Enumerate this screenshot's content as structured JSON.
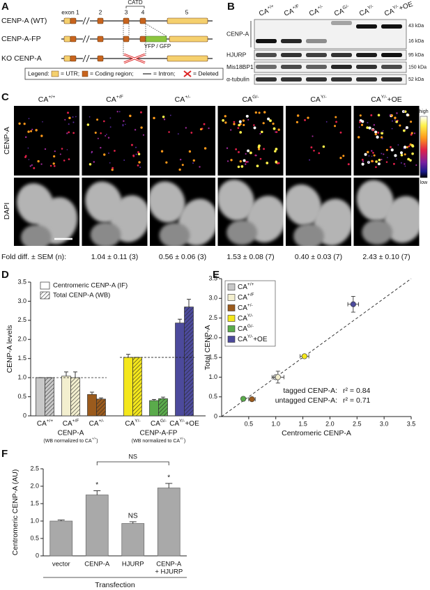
{
  "panels": {
    "A": {
      "letter": "A",
      "rows": [
        "CENP-A (WT)",
        "CENP-A-FP",
        "KO CENP-A"
      ],
      "exon_labels": [
        "exon 1",
        "2",
        "3",
        "4",
        "5"
      ],
      "domain": "CATD",
      "tag": "YFP / GFP",
      "legend": {
        "title": "Legend:",
        "utr": "= UTR;",
        "coding": "= Coding region;",
        "intron": "= Intron;",
        "deleted": "= Deleted"
      }
    },
    "B": {
      "letter": "B",
      "lanes": [
        {
          "base": "CA",
          "sup": "+/+"
        },
        {
          "base": "CA",
          "sup": "+/F"
        },
        {
          "base": "CA",
          "sup": "+/-"
        },
        {
          "base": "CA",
          "sup": "G/-"
        },
        {
          "base": "CA",
          "sup": "Y/-"
        },
        {
          "base": "CA",
          "sup": "Y/-",
          "suffix": "+OE"
        }
      ],
      "blots": [
        {
          "name": "CENP-A",
          "sizes": [
            "43 kDa",
            "16 kDa"
          ]
        },
        {
          "name": "HJURP",
          "sizes": [
            "95 kDa"
          ]
        },
        {
          "name": "Mis18BP1",
          "sizes": [
            "150 kDa"
          ]
        },
        {
          "name": "α-tubulin",
          "sizes": [
            "52 kDa"
          ]
        }
      ]
    },
    "C": {
      "letter": "C",
      "rows": [
        "CENP-A",
        "DAPI"
      ],
      "scale": {
        "high": "high",
        "low": "low"
      },
      "fold_label": "Fold diff. ± SEM (n):",
      "fold": [
        "1.04 ± 0.11 (3)",
        "0.56 ± 0.06 (3)",
        "1.53 ± 0.08 (7)",
        "0.40 ± 0.03 (7)",
        "2.43 ± 0.10 (7)"
      ]
    }
  },
  "chart_data": [
    {
      "type": "bar",
      "letter": "D",
      "ylabel": "CENP-A levels",
      "groups": [
        {
          "name": "CENP-A",
          "note": {
            "base": "(WB normalized to CA",
            "sup": "+/+",
            "suffix": ")"
          },
          "reference": 1,
          "categories": [
            {
              "base": "CA",
              "sup": "+/+"
            },
            {
              "base": "CA",
              "sup": "+/F"
            },
            {
              "base": "CA",
              "sup": "+/-"
            }
          ]
        },
        {
          "name": "CENP-A-FP",
          "note": {
            "base": "(WB normalized to CA",
            "sup": "Y/-",
            "suffix": ")"
          },
          "reference": 1.53,
          "categories": [
            {
              "base": "CA",
              "sup": "Y/-"
            },
            {
              "base": "CA",
              "sup": "G/-"
            },
            {
              "base": "CA",
              "sup": "Y/-",
              "suffix": "+OE"
            }
          ]
        }
      ],
      "colors": [
        "#c8c8c8",
        "#f3efcf",
        "#9b5b1d",
        "#f4e71b",
        "#5aab4b",
        "#4c4a9c"
      ],
      "series": [
        {
          "name": "Centromeric CENP-A (IF)",
          "pattern": "solid",
          "values": [
            1.0,
            1.04,
            0.56,
            1.53,
            0.4,
            2.43
          ],
          "errors": [
            0,
            0.11,
            0.06,
            0.08,
            0.03,
            0.1
          ]
        },
        {
          "name": "Total CENP-A (WB)",
          "pattern": "hatched",
          "values": [
            1.0,
            1.0,
            0.44,
            1.53,
            0.45,
            2.85
          ],
          "errors": [
            0,
            0.15,
            0.03,
            0,
            0.04,
            0.2
          ]
        }
      ],
      "ylim": [
        0,
        3.5
      ],
      "yticks": [
        0,
        0.5,
        {
          "value": 1,
          "label": "1.0"
        },
        1.5,
        {
          "value": 2,
          "label": "2.0"
        },
        2.5,
        {
          "value": 3,
          "label": "3.0"
        },
        3.5
      ]
    },
    {
      "type": "scatter",
      "letter": "E",
      "xlabel": "Centromeric CENP-A",
      "ylabel": "Total CENP-A",
      "legend": "upper left",
      "series": [
        {
          "name": {
            "base": "CA",
            "sup": "+/+"
          },
          "color": "#c8c8c8",
          "x": [
            1.0
          ],
          "values": [
            1.0
          ],
          "xerr": [
            0
          ],
          "yerr": [
            0
          ]
        },
        {
          "name": {
            "base": "CA",
            "sup": "+/F"
          },
          "color": "#f3efcf",
          "x": [
            1.04
          ],
          "values": [
            1.0
          ],
          "xerr": [
            0.11
          ],
          "yerr": [
            0.15
          ]
        },
        {
          "name": {
            "base": "CA",
            "sup": "+/-"
          },
          "color": "#9b5b1d",
          "x": [
            0.56
          ],
          "values": [
            0.44
          ],
          "xerr": [
            0.06
          ],
          "yerr": [
            0.03
          ]
        },
        {
          "name": {
            "base": "CA",
            "sup": "Y/-"
          },
          "color": "#f4e71b",
          "x": [
            1.53
          ],
          "values": [
            1.53
          ],
          "xerr": [
            0.08
          ],
          "yerr": [
            0
          ]
        },
        {
          "name": {
            "base": "CA",
            "sup": "G/-"
          },
          "color": "#5aab4b",
          "x": [
            0.4
          ],
          "values": [
            0.45
          ],
          "xerr": [
            0.03
          ],
          "yerr": [
            0.04
          ]
        },
        {
          "name": {
            "base": "CA",
            "sup": "Y/-",
            "suffix": "+OE"
          },
          "color": "#4c4a9c",
          "x": [
            2.43
          ],
          "values": [
            2.85
          ],
          "xerr": [
            0.1
          ],
          "yerr": [
            0.2
          ]
        }
      ],
      "xlim": [
        0,
        3.5
      ],
      "ylim": [
        0,
        3.5
      ],
      "xticks": [
        0.5,
        {
          "value": 1,
          "label": "1.0"
        },
        1.5,
        {
          "value": 2,
          "label": "2.0"
        },
        2.5,
        {
          "value": 3,
          "label": "3.0"
        },
        3.5
      ],
      "yticks": [
        0,
        0.5,
        {
          "value": 1,
          "label": "1.0"
        },
        1.5,
        {
          "value": 2,
          "label": "2.0"
        },
        2.5,
        {
          "value": 3,
          "label": "3.0"
        },
        3.5
      ],
      "identity_line": true,
      "annotations": [
        {
          "label": "tagged CENP-A:",
          "stat": "r² = 0.84"
        },
        {
          "label": "untagged CENP-A:",
          "stat": "r² = 0.71"
        }
      ]
    },
    {
      "type": "bar",
      "letter": "F",
      "ylabel": "Centromeric CENP-A (AU)",
      "xlabel": "Transfection",
      "categories": [
        "vector",
        "CENP-A",
        "HJURP",
        [
          "CENP-A",
          "+ HJURP"
        ]
      ],
      "values": [
        1.0,
        1.75,
        0.93,
        1.95
      ],
      "errors": [
        0.03,
        0.12,
        0.05,
        0.13
      ],
      "color": "#a9a9a9",
      "significance": [
        null,
        "*",
        "NS",
        "*"
      ],
      "comparison": {
        "label": "NS",
        "between": [
          1,
          3
        ]
      },
      "ylim": [
        0,
        2.5
      ],
      "yticks": [
        0,
        0.5,
        {
          "value": 1,
          "label": "1.0"
        },
        1.5,
        {
          "value": 2,
          "label": "2.0"
        },
        2.5
      ]
    }
  ]
}
